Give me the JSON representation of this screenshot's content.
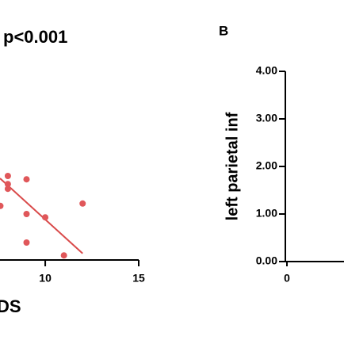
{
  "chart_data": [
    {
      "type": "scatter",
      "annotation": "p<0.001",
      "x_label": "DS",
      "x": [
        8.0,
        8.0,
        8.0,
        7.6,
        9.0,
        9.0,
        9.0,
        10.0,
        12.0,
        11.0
      ],
      "values": [
        1.8,
        1.63,
        1.53,
        1.17,
        1.73,
        1.0,
        0.4,
        0.93,
        1.22,
        0.13
      ],
      "color": "#e0575a",
      "fit_x": [
        7.58,
        12.0
      ],
      "fit_y": [
        1.75,
        0.17
      ],
      "fit_color": "#d94a4a",
      "xlim": [
        7.58,
        15
      ],
      "xticks": [
        10,
        15
      ],
      "ylim": [
        0,
        4
      ]
    },
    {
      "type": "axes",
      "panel_label": "B",
      "y_label": "left parietal inf",
      "xlim": [
        0,
        1
      ],
      "xticks": [
        0
      ],
      "ylim": [
        0,
        4
      ],
      "yticks": [
        {
          "value": 0,
          "label": "0.00"
        },
        {
          "value": 1,
          "label": "1.00"
        },
        {
          "value": 2,
          "label": "2.00"
        },
        {
          "value": 3,
          "label": "3.00"
        },
        {
          "value": 4,
          "label": "4.00"
        }
      ]
    }
  ]
}
